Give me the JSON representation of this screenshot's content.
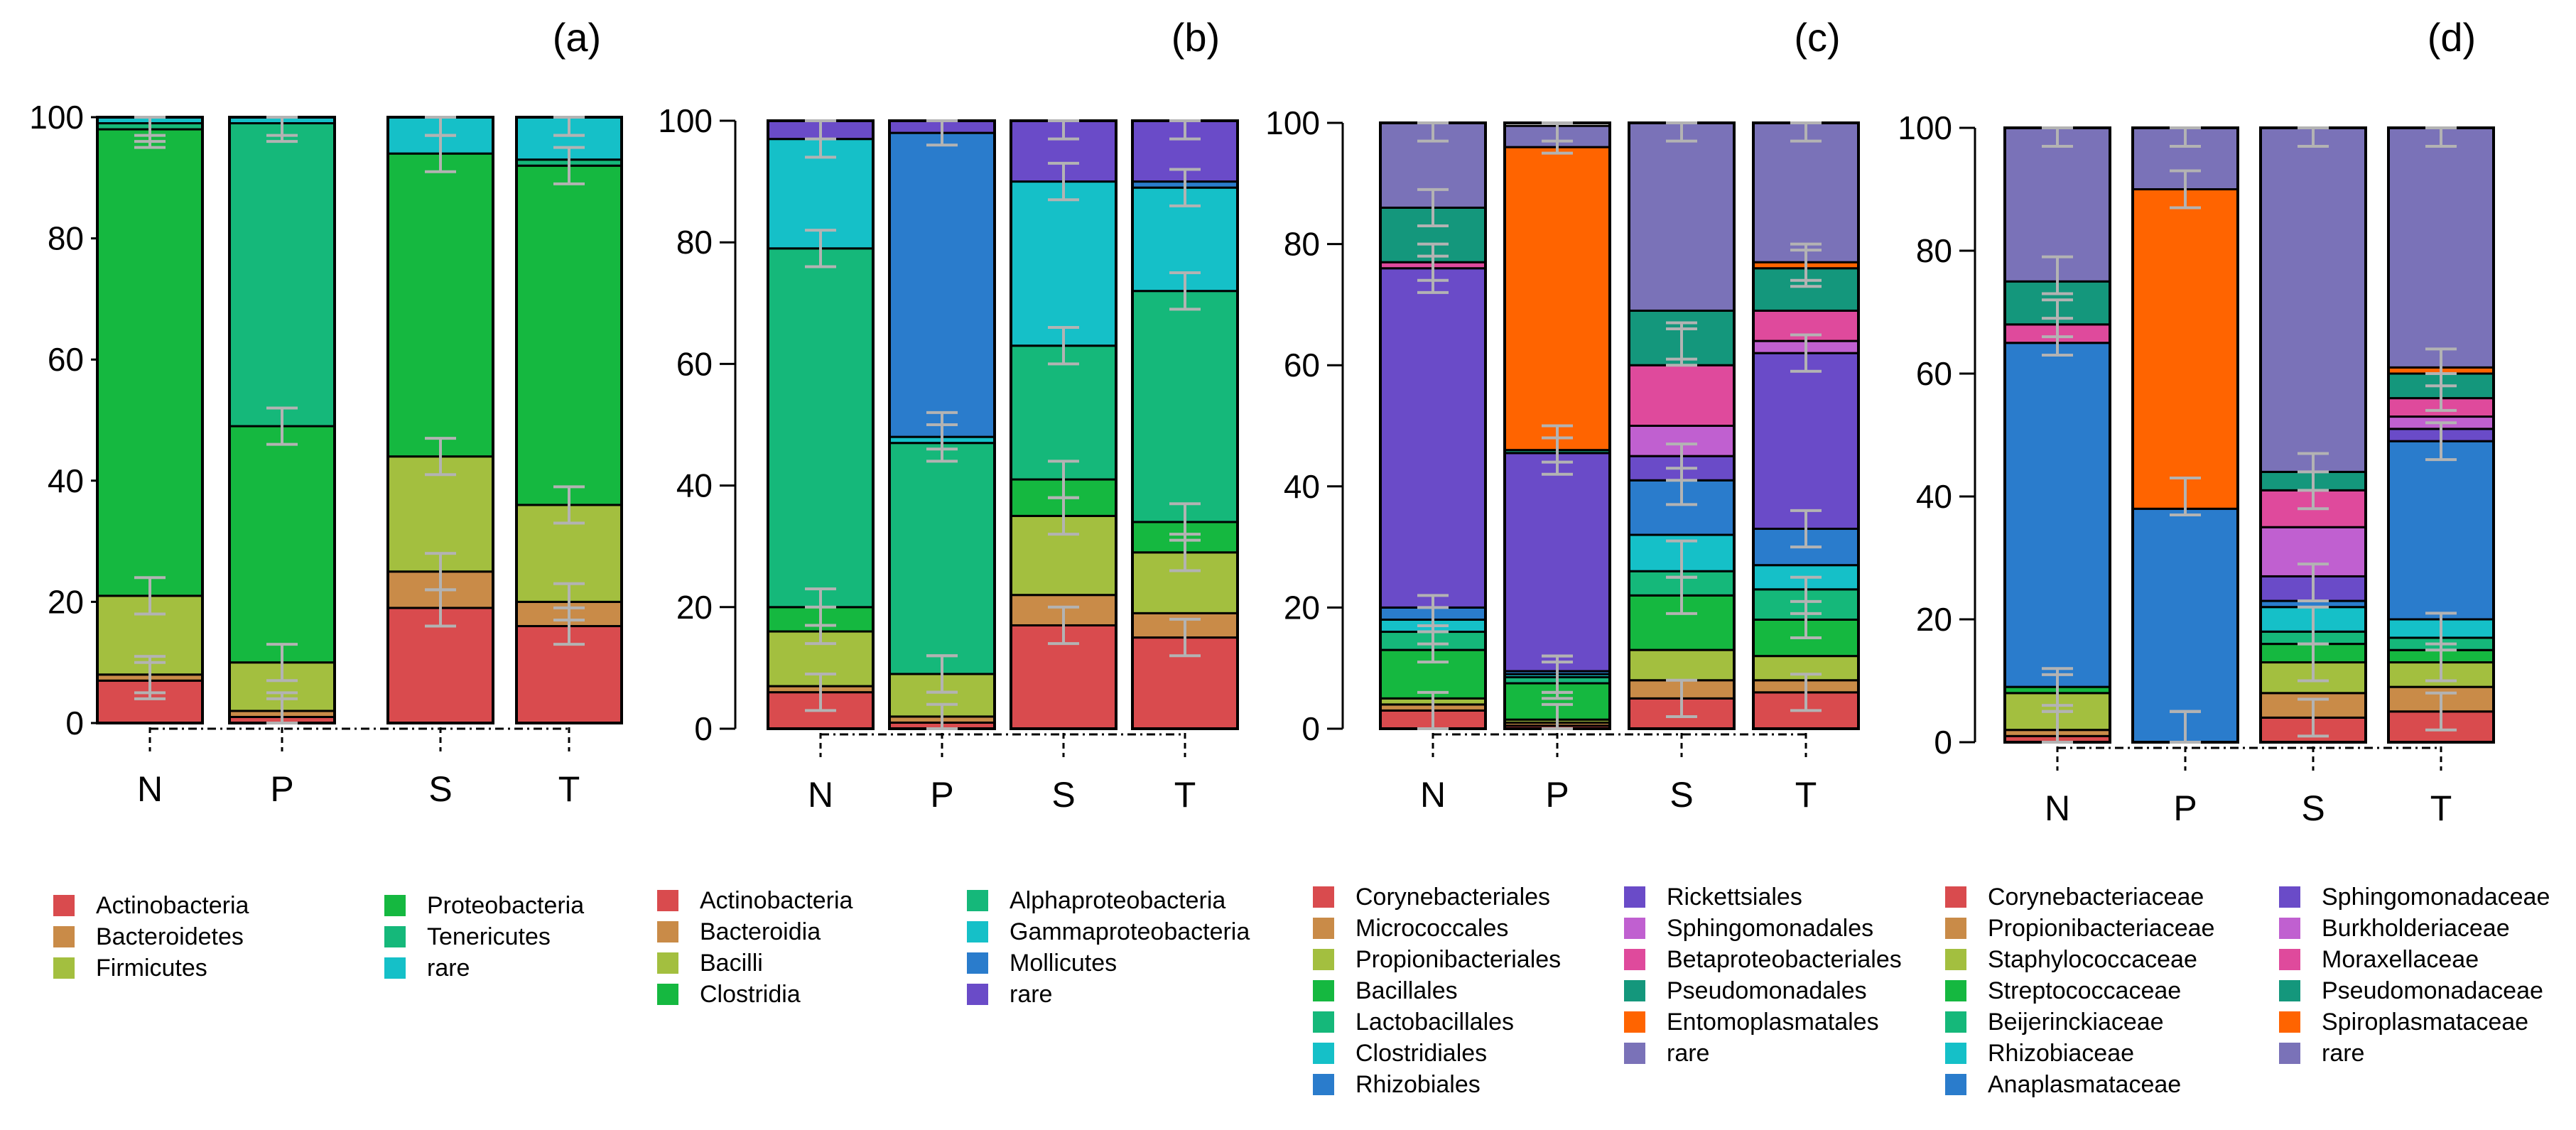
{
  "chart_data": [
    {
      "type": "bar",
      "title": "(a)",
      "categories": [
        "N",
        "P",
        "S",
        "T"
      ],
      "ylim": [
        0,
        100
      ],
      "yticks": [
        "0",
        "20",
        "40",
        "60",
        "80",
        "100"
      ],
      "series": [
        {
          "name": "Actinobacteria",
          "color": "#d94b4e",
          "values": [
            7,
            1,
            19,
            16
          ]
        },
        {
          "name": "Bacteroidetes",
          "color": "#c98b48",
          "values": [
            1,
            1,
            6,
            4
          ]
        },
        {
          "name": "Firmicutes",
          "color": "#a3bf3f",
          "values": [
            13,
            8,
            19,
            16
          ]
        },
        {
          "name": "Proteobacteria",
          "color": "#15b840",
          "values": [
            77,
            39,
            50,
            56
          ]
        },
        {
          "name": "Tenericutes",
          "color": "#15b87a",
          "values": [
            1,
            50,
            0,
            1
          ]
        },
        {
          "name": "rare",
          "color": "#15c0c8",
          "values": [
            1,
            1,
            6,
            7
          ]
        }
      ],
      "error_bars": [
        [
          7,
          1,
          19,
          16
        ],
        [
          8,
          2,
          25,
          20
        ],
        [
          21,
          10,
          44,
          36
        ],
        [
          98,
          49,
          94,
          92
        ],
        [
          99,
          99,
          100,
          100
        ],
        [
          100,
          100,
          100,
          100
        ]
      ]
    },
    {
      "type": "bar",
      "title": "(b)",
      "categories": [
        "N",
        "P",
        "S",
        "T"
      ],
      "ylim": [
        0,
        100
      ],
      "yticks": [
        "0",
        "20",
        "40",
        "60",
        "80",
        "100"
      ],
      "series": [
        {
          "name": "Actinobacteria",
          "color": "#d94b4e",
          "values": [
            6,
            1,
            17,
            15
          ]
        },
        {
          "name": "Bacteroidia",
          "color": "#c98b48",
          "values": [
            1,
            1,
            5,
            4
          ]
        },
        {
          "name": "Bacilli",
          "color": "#a3bf3f",
          "values": [
            9,
            7,
            13,
            10
          ]
        },
        {
          "name": "Clostridia",
          "color": "#15b840",
          "values": [
            4,
            0,
            6,
            5
          ]
        },
        {
          "name": "Alphaproteobacteria",
          "color": "#15b87a",
          "values": [
            59,
            38,
            22,
            38
          ]
        },
        {
          "name": "Gammaproteobacteria",
          "color": "#15c0c8",
          "values": [
            18,
            1,
            27,
            17
          ]
        },
        {
          "name": "Mollicutes",
          "color": "#2a7ccc",
          "values": [
            0,
            50,
            0,
            1
          ]
        },
        {
          "name": "rare",
          "color": "#6a4bc8",
          "values": [
            3,
            2,
            10,
            10
          ]
        }
      ],
      "error_bars": [
        [
          6,
          1,
          17,
          15
        ],
        [
          17,
          9,
          35,
          29
        ],
        [
          20,
          9,
          41,
          34
        ],
        [
          79,
          47,
          63,
          72
        ],
        [
          97,
          49,
          90,
          89
        ],
        [
          100,
          99,
          100,
          100
        ]
      ]
    },
    {
      "type": "bar",
      "title": "(c)",
      "categories": [
        "N",
        "P",
        "S",
        "T"
      ],
      "ylim": [
        0,
        100
      ],
      "yticks": [
        "0",
        "20",
        "40",
        "60",
        "80",
        "100"
      ],
      "series": [
        {
          "name": "Corynebacteriales",
          "color": "#d94b4e",
          "values": [
            3,
            0.5,
            5,
            6
          ]
        },
        {
          "name": "Micrococcales",
          "color": "#c98b48",
          "values": [
            1,
            0.5,
            3,
            2
          ]
        },
        {
          "name": "Propionibacteriales",
          "color": "#a3bf3f",
          "values": [
            1,
            0.5,
            5,
            4
          ]
        },
        {
          "name": "Bacillales",
          "color": "#15b840",
          "values": [
            8,
            6,
            9,
            6
          ]
        },
        {
          "name": "Lactobacillales",
          "color": "#15b87a",
          "values": [
            3,
            1,
            4,
            5
          ]
        },
        {
          "name": "Clostridiales",
          "color": "#15c0c8",
          "values": [
            2,
            0.5,
            6,
            4
          ]
        },
        {
          "name": "Rhizobiales",
          "color": "#2a7ccc",
          "values": [
            2,
            0.5,
            9,
            6
          ]
        },
        {
          "name": "Rickettsiales",
          "color": "#6a4bc8",
          "values": [
            56,
            36,
            4,
            29
          ]
        },
        {
          "name": "Sphingomonadales",
          "color": "#c060d0",
          "values": [
            0,
            0,
            5,
            2
          ]
        },
        {
          "name": "Betaproteobacteriales",
          "color": "#df4a9c",
          "values": [
            1,
            0,
            10,
            5
          ]
        },
        {
          "name": "Pseudomonadales",
          "color": "#14977c",
          "values": [
            9,
            0.5,
            9,
            7
          ]
        },
        {
          "name": "Entomoplasmatales",
          "color": "#ff6400",
          "values": [
            0,
            50,
            0,
            1
          ]
        },
        {
          "name": "rare",
          "color": "#7a72b8",
          "values": [
            14,
            3.5,
            31,
            23
          ]
        }
      ],
      "error_bars": [
        [
          3,
          1,
          5,
          6
        ],
        [
          14,
          8,
          22,
          18
        ],
        [
          17,
          9,
          28,
          22
        ],
        [
          19,
          9,
          40,
          33
        ],
        [
          75,
          45,
          44,
          62
        ],
        [
          77,
          47,
          63,
          76
        ],
        [
          86,
          98,
          64,
          77
        ],
        [
          100,
          100,
          100,
          100
        ]
      ]
    },
    {
      "type": "bar",
      "title": "(d)",
      "categories": [
        "N",
        "P",
        "S",
        "T"
      ],
      "ylim": [
        0,
        100
      ],
      "yticks": [
        "0",
        "20",
        "40",
        "60",
        "80",
        "100"
      ],
      "series": [
        {
          "name": "Corynebacteriaceae",
          "color": "#d94b4e",
          "values": [
            1,
            0,
            4,
            5
          ]
        },
        {
          "name": "Propionibacteriaceae",
          "color": "#c98b48",
          "values": [
            1,
            0,
            4,
            4
          ]
        },
        {
          "name": "Staphylococcaceae",
          "color": "#a3bf3f",
          "values": [
            6,
            0,
            5,
            4
          ]
        },
        {
          "name": "Streptococcaceae",
          "color": "#15b840",
          "values": [
            1,
            0,
            3,
            2
          ]
        },
        {
          "name": "Beijerinckiaceae",
          "color": "#15b87a",
          "values": [
            0,
            0,
            2,
            2
          ]
        },
        {
          "name": "Rhizobiaceae",
          "color": "#15c0c8",
          "values": [
            0,
            0,
            4,
            3
          ]
        },
        {
          "name": "Anaplasmataceae",
          "color": "#2a7ccc",
          "values": [
            56,
            38,
            1,
            29
          ]
        },
        {
          "name": "Sphingomonadaceae",
          "color": "#6a4bc8",
          "values": [
            0,
            0,
            4,
            2
          ]
        },
        {
          "name": "Burkholderiaceae",
          "color": "#c060d0",
          "values": [
            0,
            0,
            8,
            2
          ]
        },
        {
          "name": "Moraxellaceae",
          "color": "#df4a9c",
          "values": [
            3,
            0,
            6,
            3
          ]
        },
        {
          "name": "Pseudomonadaceae",
          "color": "#14977c",
          "values": [
            7,
            0,
            3,
            4
          ]
        },
        {
          "name": "Spiroplasmataceae",
          "color": "#ff6400",
          "values": [
            0,
            52,
            0,
            1
          ]
        },
        {
          "name": "rare",
          "color": "#7a72b8",
          "values": [
            25,
            10,
            56,
            39
          ]
        }
      ],
      "error_bars": [
        [
          2,
          2,
          4,
          5
        ],
        [
          8,
          2,
          13,
          13
        ],
        [
          9,
          2,
          19,
          18
        ],
        [
          66,
          40,
          26,
          49
        ],
        [
          69,
          40,
          41,
          57
        ],
        [
          76,
          90,
          44,
          61
        ],
        [
          100,
          100,
          100,
          100
        ]
      ]
    }
  ],
  "legends": [
    {
      "columns": [
        [
          "Actinobacteria",
          "Bacteroidetes",
          "Firmicutes"
        ],
        [
          "Proteobacteria",
          "Tenericutes",
          "rare"
        ]
      ]
    },
    {
      "columns": [
        [
          "Actinobacteria",
          "Bacteroidia",
          "Bacilli",
          "Clostridia"
        ],
        [
          "Alphaproteobacteria",
          "Gammaproteobacteria",
          "Mollicutes",
          "rare"
        ]
      ]
    },
    {
      "columns": [
        [
          "Corynebacteriales",
          "Micrococcales",
          "Propionibacteriales",
          "Bacillales",
          "Lactobacillales",
          "Clostridiales",
          "Rhizobiales"
        ],
        [
          "Rickettsiales",
          "Sphingomonadales",
          "Betaproteobacteriales",
          "Pseudomonadales",
          "Entomoplasmatales",
          "rare"
        ]
      ]
    },
    {
      "columns": [
        [
          "Corynebacteriaceae",
          "Propionibacteriaceae",
          "Staphylococcaceae",
          "Streptococcaceae",
          "Beijerinckiaceae",
          "Rhizobiaceae",
          "Anaplasmataceae"
        ],
        [
          "Sphingomonadaceae",
          "Burkholderiaceae",
          "Moraxellaceae",
          "Pseudomonadaceae",
          "Spiroplasmataceae",
          "rare"
        ]
      ]
    }
  ]
}
